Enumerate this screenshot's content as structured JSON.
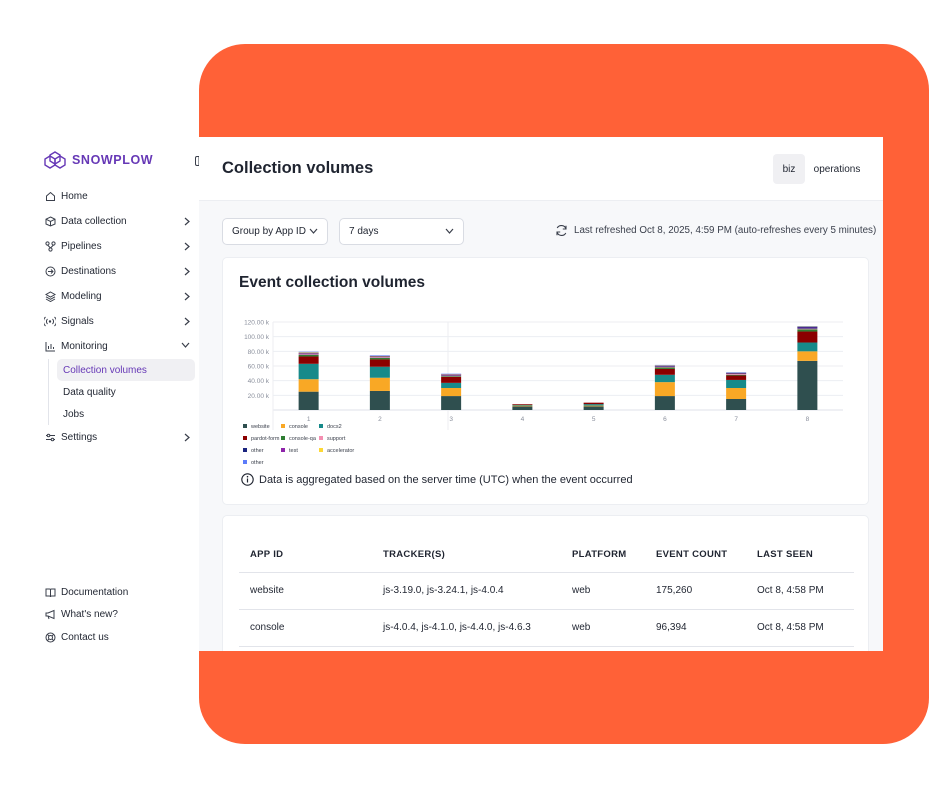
{
  "brand": {
    "name": "SNOWPLOW",
    "color": "#6638b6"
  },
  "colors": {
    "accent_bg": "#ff6137"
  },
  "sidebar": {
    "items": [
      {
        "label": "Home",
        "icon": "home-icon"
      },
      {
        "label": "Data collection",
        "icon": "cube-icon"
      },
      {
        "label": "Pipelines",
        "icon": "pipelines-icon"
      },
      {
        "label": "Destinations",
        "icon": "destinations-icon"
      },
      {
        "label": "Modeling",
        "icon": "layers-icon"
      },
      {
        "label": "Signals",
        "icon": "signal-icon"
      },
      {
        "label": "Monitoring",
        "icon": "chart-icon"
      }
    ],
    "monitoring_sub": [
      "Collection volumes",
      "Data quality",
      "Jobs"
    ],
    "settings": "Settings",
    "bottom": [
      "Documentation",
      "What's new?",
      "Contact us"
    ]
  },
  "header": {
    "title": "Collection volumes",
    "workspaces": [
      "biz",
      "operations"
    ]
  },
  "filters": {
    "group_by": "Group by App ID",
    "range": "7 days",
    "refresh_text": "Last refreshed Oct 8, 2025, 4:59 PM (auto-refreshes every 5 minutes)"
  },
  "chart_card": {
    "title": "Event collection volumes",
    "note": "Data is aggregated based on the server time (UTC) when the event occurred"
  },
  "chart_data": {
    "type": "bar",
    "stacked": true,
    "categories": [
      "1",
      "2",
      "3",
      "4",
      "5",
      "6",
      "7",
      "8"
    ],
    "ylim": [
      0,
      120000
    ],
    "yticks": [
      "20.00 k",
      "40.00 k",
      "60.00 k",
      "80.00 k",
      "100.00 k",
      "120.00 k"
    ],
    "series": [
      {
        "name": "website",
        "color": "#2f4f4f",
        "values": [
          25000,
          26000,
          19000,
          5000,
          5000,
          19000,
          15000,
          67000
        ]
      },
      {
        "name": "console",
        "color": "#f9a825",
        "values": [
          17000,
          18000,
          11000,
          1000,
          1000,
          19000,
          15000,
          13000
        ]
      },
      {
        "name": "docs2",
        "color": "#178a8a",
        "values": [
          21000,
          15000,
          7000,
          1000,
          2000,
          10000,
          11000,
          12000
        ]
      },
      {
        "name": "pardot-form",
        "color": "#8b0000",
        "values": [
          10000,
          10000,
          8000,
          1000,
          2000,
          8000,
          6000,
          15000
        ]
      },
      {
        "name": "console-qa",
        "color": "#2e7d32",
        "values": [
          2000,
          2000,
          1000,
          0,
          0,
          2000,
          1000,
          3000
        ]
      },
      {
        "name": "support",
        "color": "#f48fb1",
        "values": [
          1000,
          1000,
          1000,
          0,
          0,
          1000,
          1000,
          1000
        ]
      },
      {
        "name": "other",
        "color": "#1a237e",
        "values": [
          1000,
          1000,
          1000,
          0,
          0,
          1000,
          1000,
          2000
        ]
      },
      {
        "name": "test",
        "color": "#8e24aa",
        "values": [
          500,
          500,
          500,
          0,
          0,
          500,
          500,
          500
        ]
      },
      {
        "name": "accelerator",
        "color": "#fdd835",
        "values": [
          1000,
          500,
          500,
          0,
          0,
          500,
          500,
          500
        ]
      },
      {
        "name": "other",
        "color": "#5c7cfa",
        "values": [
          1000,
          500,
          500,
          0,
          0,
          500,
          500,
          500
        ]
      }
    ],
    "legend": "bottom-left"
  },
  "table": {
    "headers": [
      "APP ID",
      "TRACKER(S)",
      "PLATFORM",
      "EVENT COUNT",
      "LAST SEEN"
    ],
    "rows": [
      [
        "website",
        "js-3.19.0, js-3.24.1, js-4.0.4",
        "web",
        "175,260",
        "Oct 8, 4:58 PM"
      ],
      [
        "console",
        "js-4.0.4, js-4.1.0, js-4.4.0, js-4.6.3",
        "web",
        "96,394",
        "Oct 8, 4:58 PM"
      ]
    ]
  }
}
